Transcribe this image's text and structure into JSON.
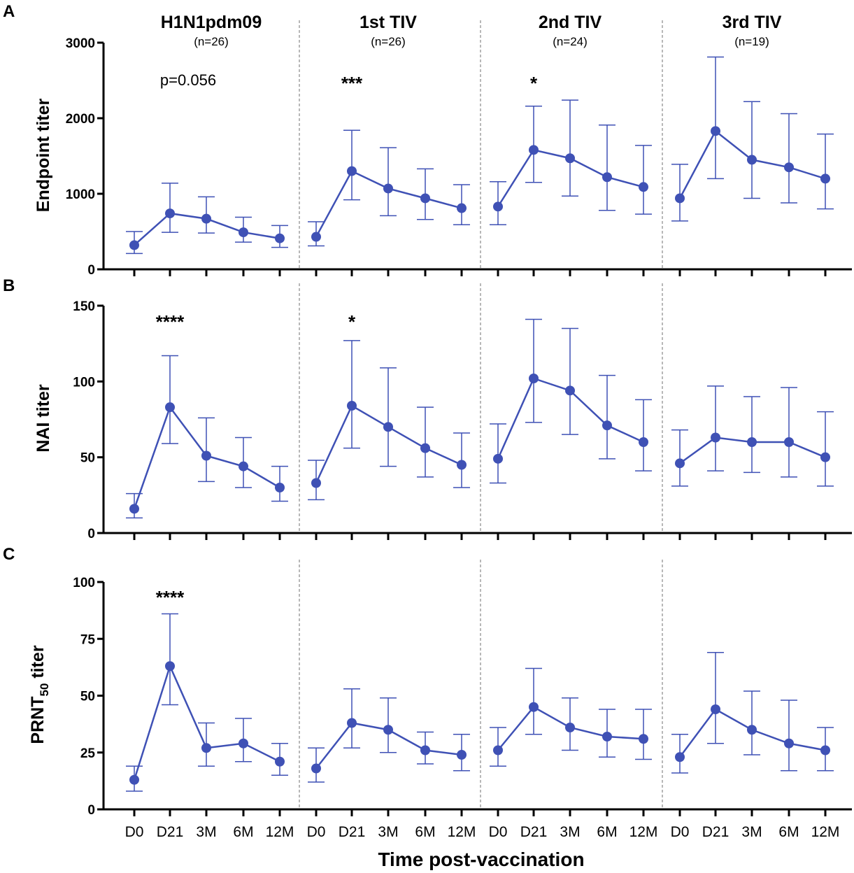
{
  "figure": {
    "x_axis_label": "Time post-vaccination",
    "groups": [
      {
        "title": "H1N1pdm09",
        "n": "(n=26)"
      },
      {
        "title": "1st TIV",
        "n": "(n=26)"
      },
      {
        "title": "2nd TIV",
        "n": "(n=24)"
      },
      {
        "title": "3rd TIV",
        "n": "(n=19)"
      }
    ],
    "x_categories": [
      "D0",
      "D21",
      "3M",
      "6M",
      "12M"
    ],
    "series_color": "#3f51b5"
  },
  "chart_data": [
    {
      "type": "line",
      "panel": "A",
      "ylabel": "Endpoint titer",
      "ylim": [
        0,
        3000
      ],
      "yticks": [
        "0",
        "1000",
        "2000",
        "3000"
      ],
      "annotations": [
        "p=0.056",
        "***",
        "*",
        ""
      ],
      "groups": [
        {
          "name": "H1N1pdm09",
          "values": [
            320,
            740,
            670,
            490,
            410
          ],
          "lower": [
            210,
            490,
            480,
            360,
            290
          ],
          "upper": [
            500,
            1140,
            960,
            690,
            580
          ]
        },
        {
          "name": "1st TIV",
          "values": [
            430,
            1300,
            1070,
            940,
            810
          ],
          "lower": [
            310,
            920,
            710,
            660,
            590
          ],
          "upper": [
            630,
            1840,
            1610,
            1330,
            1120
          ]
        },
        {
          "name": "2nd TIV",
          "values": [
            830,
            1580,
            1470,
            1220,
            1090
          ],
          "lower": [
            590,
            1150,
            970,
            780,
            730
          ],
          "upper": [
            1160,
            2160,
            2240,
            1910,
            1640
          ]
        },
        {
          "name": "3rd TIV",
          "values": [
            940,
            1830,
            1450,
            1350,
            1200
          ],
          "lower": [
            640,
            1200,
            940,
            880,
            800
          ],
          "upper": [
            1390,
            2810,
            2220,
            2060,
            1790
          ]
        }
      ]
    },
    {
      "type": "line",
      "panel": "B",
      "ylabel": "NAI titer",
      "ylim": [
        0,
        150
      ],
      "yticks": [
        "0",
        "50",
        "100",
        "150"
      ],
      "annotations": [
        "****",
        "*",
        "",
        ""
      ],
      "groups": [
        {
          "name": "H1N1pdm09",
          "values": [
            16,
            83,
            51,
            44,
            30
          ],
          "lower": [
            10,
            59,
            34,
            30,
            21
          ],
          "upper": [
            26,
            117,
            76,
            63,
            44
          ]
        },
        {
          "name": "1st TIV",
          "values": [
            33,
            84,
            70,
            56,
            45
          ],
          "lower": [
            22,
            56,
            44,
            37,
            30
          ],
          "upper": [
            48,
            127,
            109,
            83,
            66
          ]
        },
        {
          "name": "2nd TIV",
          "values": [
            49,
            102,
            94,
            71,
            60
          ],
          "lower": [
            33,
            73,
            65,
            49,
            41
          ],
          "upper": [
            72,
            141,
            135,
            104,
            88
          ]
        },
        {
          "name": "3rd TIV",
          "values": [
            46,
            63,
            60,
            60,
            50
          ],
          "lower": [
            31,
            41,
            40,
            37,
            31
          ],
          "upper": [
            68,
            97,
            90,
            96,
            80
          ]
        }
      ]
    },
    {
      "type": "line",
      "panel": "C",
      "ylabel": "PRNT",
      "ylabel_sub": "50",
      "ylabel_suffix": " titer",
      "ylim": [
        0,
        100
      ],
      "yticks": [
        "0",
        "25",
        "50",
        "75",
        "100"
      ],
      "annotations": [
        "****",
        "",
        "",
        ""
      ],
      "groups": [
        {
          "name": "H1N1pdm09",
          "values": [
            13,
            63,
            27,
            29,
            21
          ],
          "lower": [
            8,
            46,
            19,
            21,
            15
          ],
          "upper": [
            19,
            86,
            38,
            40,
            29
          ]
        },
        {
          "name": "1st TIV",
          "values": [
            18,
            38,
            35,
            26,
            24
          ],
          "lower": [
            12,
            27,
            25,
            20,
            17
          ],
          "upper": [
            27,
            53,
            49,
            34,
            33
          ]
        },
        {
          "name": "2nd TIV",
          "values": [
            26,
            45,
            36,
            32,
            31
          ],
          "lower": [
            19,
            33,
            26,
            23,
            22
          ],
          "upper": [
            36,
            62,
            49,
            44,
            44
          ]
        },
        {
          "name": "3rd TIV",
          "values": [
            23,
            44,
            35,
            29,
            26
          ],
          "lower": [
            16,
            29,
            24,
            17,
            17
          ],
          "upper": [
            33,
            69,
            52,
            48,
            36
          ]
        }
      ]
    }
  ]
}
